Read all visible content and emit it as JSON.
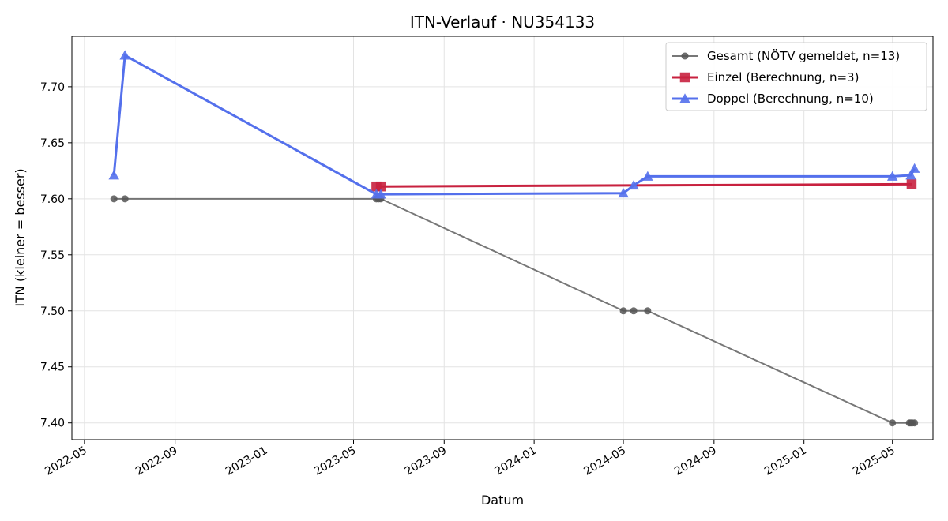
{
  "chart_data": {
    "type": "line",
    "title": "ITN-Verlauf · NU354133",
    "xlabel": "Datum",
    "ylabel": "ITN  (kleiner = besser)",
    "x_axis_type": "date",
    "xlim": [
      "2022-04-14",
      "2025-06-25"
    ],
    "ylim": [
      7.385,
      7.745
    ],
    "x_ticks": [
      "2022-05-01",
      "2022-09-01",
      "2023-01-01",
      "2023-05-01",
      "2023-09-01",
      "2024-01-01",
      "2024-05-01",
      "2024-09-01",
      "2025-01-01",
      "2025-05-01"
    ],
    "x_tick_labels": [
      "2022-05",
      "2022-09",
      "2023-01",
      "2023-05",
      "2023-09",
      "2024-01",
      "2024-05",
      "2024-09",
      "2025-01",
      "2025-05"
    ],
    "y_ticks": [
      7.4,
      7.45,
      7.5,
      7.55,
      7.6,
      7.65,
      7.7
    ],
    "y_tick_labels": [
      "7.40",
      "7.45",
      "7.50",
      "7.55",
      "7.60",
      "7.65",
      "7.70"
    ],
    "grid": true,
    "legend_position": "top-right",
    "series": [
      {
        "name": "Gesamt (NÖTV gemeldet, n=13)",
        "color": "#555555",
        "marker": "circle",
        "points": [
          {
            "x": "2022-06-10",
            "y": 7.6
          },
          {
            "x": "2022-06-25",
            "y": 7.6
          },
          {
            "x": "2023-06-01",
            "y": 7.6
          },
          {
            "x": "2023-06-04",
            "y": 7.6
          },
          {
            "x": "2023-06-07",
            "y": 7.6
          },
          {
            "x": "2024-05-01",
            "y": 7.5
          },
          {
            "x": "2024-05-15",
            "y": 7.5
          },
          {
            "x": "2024-06-03",
            "y": 7.5
          },
          {
            "x": "2025-05-01",
            "y": 7.4
          },
          {
            "x": "2025-05-24",
            "y": 7.4
          },
          {
            "x": "2025-05-26",
            "y": 7.4
          },
          {
            "x": "2025-05-28",
            "y": 7.4
          },
          {
            "x": "2025-05-31",
            "y": 7.4
          }
        ]
      },
      {
        "name": "Einzel (Berechnung, n=3)",
        "color": "#c8213f",
        "marker": "square",
        "points": [
          {
            "x": "2023-06-01",
            "y": 7.611
          },
          {
            "x": "2023-06-07",
            "y": 7.611
          },
          {
            "x": "2025-05-27",
            "y": 7.613
          }
        ]
      },
      {
        "name": "Doppel (Berechnung, n=10)",
        "color": "#5470ec",
        "marker": "triangle",
        "points": [
          {
            "x": "2022-06-10",
            "y": 7.621
          },
          {
            "x": "2022-06-25",
            "y": 7.728
          },
          {
            "x": "2023-06-01",
            "y": 7.604
          },
          {
            "x": "2023-06-07",
            "y": 7.604
          },
          {
            "x": "2024-05-01",
            "y": 7.605
          },
          {
            "x": "2024-05-15",
            "y": 7.612
          },
          {
            "x": "2024-06-03",
            "y": 7.62
          },
          {
            "x": "2025-05-01",
            "y": 7.62
          },
          {
            "x": "2025-05-26",
            "y": 7.621
          },
          {
            "x": "2025-05-31",
            "y": 7.627
          }
        ]
      }
    ]
  }
}
